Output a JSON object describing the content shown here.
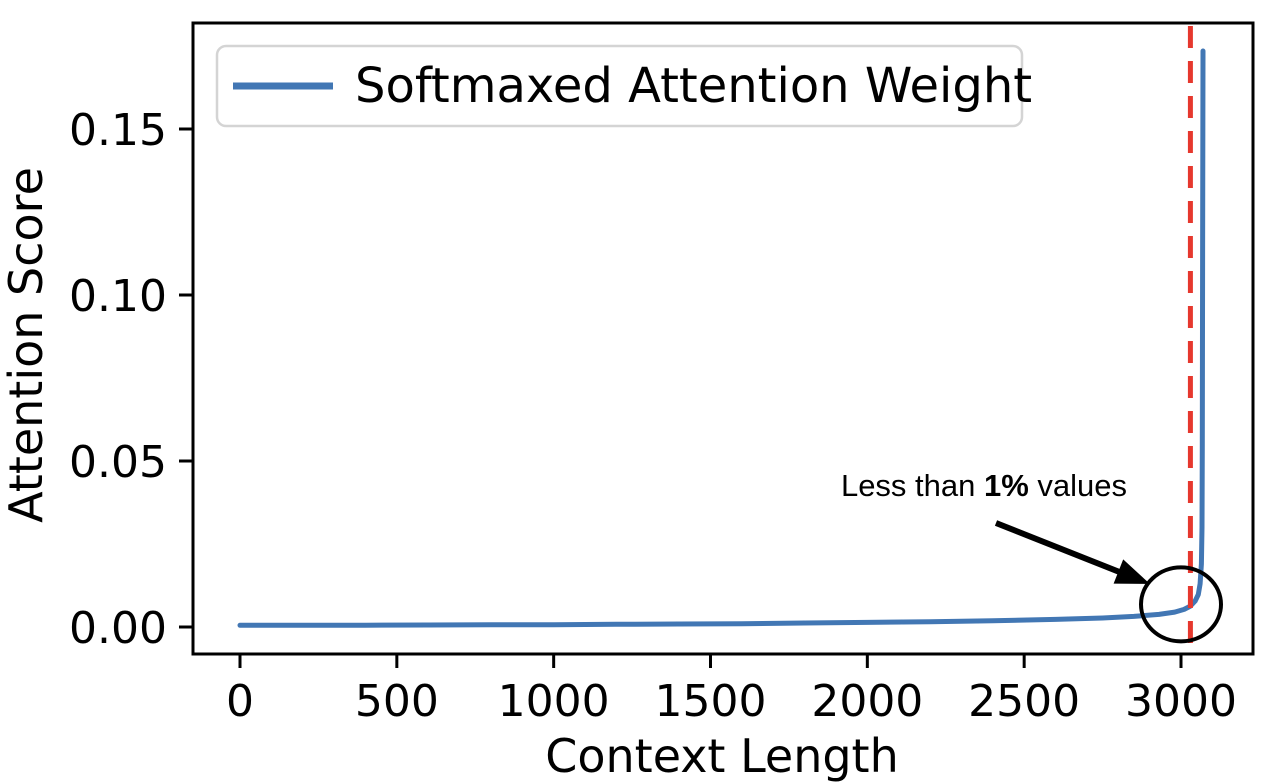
{
  "figure": {
    "background": "#ffffff",
    "kind": "matplotlib line plot"
  },
  "chart_data": {
    "type": "line",
    "title": "",
    "xlabel": "Context Length",
    "ylabel": "Attention Score",
    "x_ticks": {
      "values": [
        0,
        500,
        1000,
        1500,
        2000,
        2500,
        3000
      ],
      "labels": [
        "0",
        "500",
        "1000",
        "1500",
        "2000",
        "2500",
        "3000"
      ]
    },
    "y_ticks": {
      "values": [
        0,
        0.05,
        0.1,
        0.15
      ],
      "labels": [
        "0.00",
        "0.05",
        "0.10",
        "0.15"
      ]
    },
    "xlim": [
      -150,
      3230
    ],
    "ylim": [
      -0.008,
      0.182
    ],
    "grid": false,
    "legend": {
      "position": "upper left",
      "entries": [
        {
          "label": "Softmaxed Attention Weight",
          "color": "#4277b4"
        }
      ]
    },
    "series": [
      {
        "name": "Softmaxed Attention Weight",
        "color": "#4277b4",
        "points": [
          [
            0,
            0.0005
          ],
          [
            200,
            0.0005
          ],
          [
            400,
            0.00055
          ],
          [
            600,
            0.0006
          ],
          [
            800,
            0.00065
          ],
          [
            1000,
            0.0007
          ],
          [
            1200,
            0.0008
          ],
          [
            1400,
            0.0009
          ],
          [
            1600,
            0.001
          ],
          [
            1800,
            0.0012
          ],
          [
            2000,
            0.0014
          ],
          [
            2200,
            0.0016
          ],
          [
            2400,
            0.0019
          ],
          [
            2600,
            0.0023
          ],
          [
            2750,
            0.0027
          ],
          [
            2850,
            0.0032
          ],
          [
            2930,
            0.0038
          ],
          [
            2980,
            0.0045
          ],
          [
            3010,
            0.0053
          ],
          [
            3030,
            0.0063
          ],
          [
            3045,
            0.0078
          ],
          [
            3055,
            0.0098
          ],
          [
            3061,
            0.013
          ],
          [
            3065,
            0.019
          ],
          [
            3067,
            0.03
          ],
          [
            3068,
            0.055
          ],
          [
            3069,
            0.11
          ],
          [
            3070,
            0.1735
          ]
        ]
      }
    ],
    "vline": {
      "x": 3030,
      "color": "#e6382e",
      "style": "dashed"
    },
    "annotations": {
      "label": {
        "prefix": "Less than ",
        "bold": "1%",
        "suffix": " values"
      },
      "circle": {
        "x": 3000,
        "y": 0.0068
      }
    }
  }
}
